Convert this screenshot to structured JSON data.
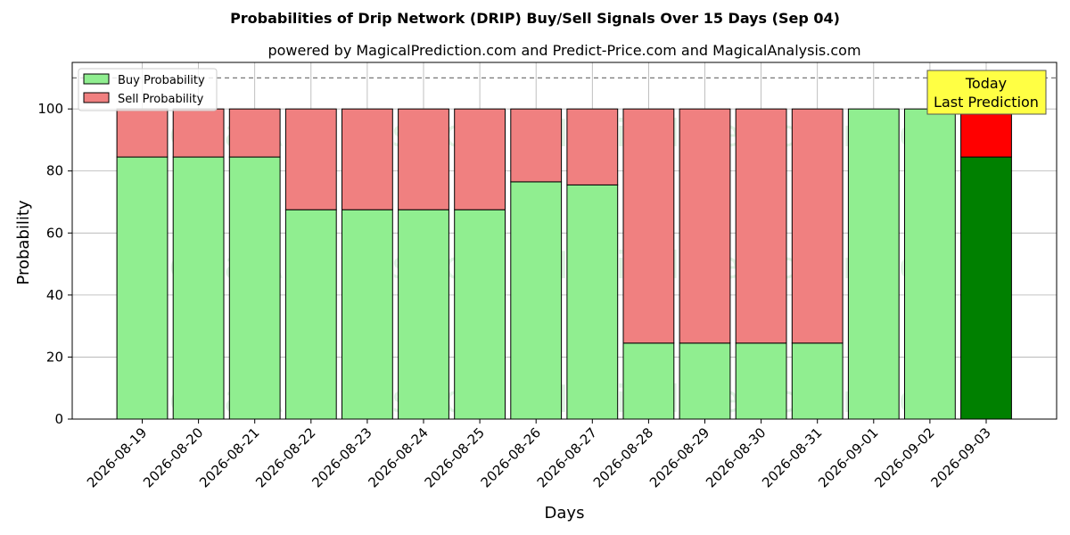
{
  "chart_data": {
    "type": "bar",
    "stacked": true,
    "title": "Probabilities of Drip Network (DRIP) Buy/Sell Signals Over 15 Days (Sep 04)",
    "subtitle": "powered by MagicalPrediction.com and Predict-Price.com and MagicalAnalysis.com",
    "xlabel": "Days",
    "ylabel": "Probability",
    "ylim": [
      0,
      115
    ],
    "yticks": [
      0,
      20,
      40,
      60,
      80,
      100
    ],
    "grid": true,
    "legend_position": "top-left",
    "reference_line": 110,
    "categories": [
      "2026-08-19",
      "2026-08-20",
      "2026-08-21",
      "2026-08-22",
      "2026-08-23",
      "2026-08-24",
      "2026-08-25",
      "2026-08-26",
      "2026-08-27",
      "2026-08-28",
      "2026-08-29",
      "2026-08-30",
      "2026-08-31",
      "2026-09-01",
      "2026-09-02",
      "2026-09-03"
    ],
    "series": [
      {
        "name": "Buy Probability",
        "color": "#90ee90",
        "highlight_color": "#008000",
        "values": [
          84.5,
          84.5,
          84.5,
          67.5,
          67.5,
          67.5,
          67.5,
          76.5,
          75.5,
          24.5,
          24.5,
          24.5,
          24.5,
          100,
          100,
          84.5
        ]
      },
      {
        "name": "Sell Probability",
        "color": "#f08080",
        "highlight_color": "#ff0000",
        "values": [
          15.5,
          15.5,
          15.5,
          32.5,
          32.5,
          32.5,
          32.5,
          23.5,
          24.5,
          75.5,
          75.5,
          75.5,
          75.5,
          0,
          0,
          15.5
        ]
      }
    ],
    "annotation": {
      "lines": [
        "Today",
        "Last Prediction"
      ],
      "category": "2026-09-03",
      "background": "#ffff44"
    },
    "watermarks": [
      "MagicalAnalysis.com",
      "MagicalPrediction.com"
    ]
  }
}
